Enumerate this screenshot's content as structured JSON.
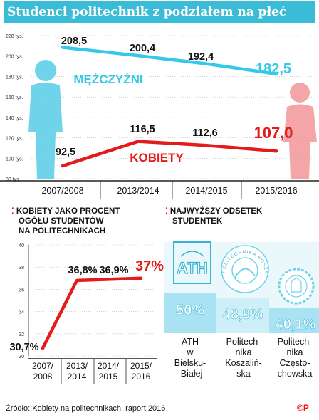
{
  "title": "Studenci politechnik z podziałem na płeć",
  "chart_data": [
    {
      "type": "line",
      "title": "Studenci politechnik z podziałem na płeć",
      "categories": [
        "2007/2008",
        "2013/2014",
        "2014/2015",
        "2015/2016"
      ],
      "ylim": [
        80,
        220
      ],
      "yticks": [
        "80 tys.",
        "100 tys.",
        "120 tys.",
        "140 tys.",
        "160 tys.",
        "180 tys.",
        "200 tys.",
        "220 tys."
      ],
      "series": [
        {
          "name": "MĘŻCZYŹNI",
          "values": [
            208.5,
            200.4,
            192.4,
            182.5
          ],
          "labels": [
            "208,5",
            "200,4",
            "192,4",
            "182,5"
          ],
          "color": "#36c8e8"
        },
        {
          "name": "KOBIETY",
          "values": [
            92.5,
            116.5,
            112.6,
            107.0
          ],
          "labels": [
            "92,5",
            "116,5",
            "112,6",
            "107,0"
          ],
          "color": "#e41b1b"
        }
      ]
    },
    {
      "type": "line",
      "title": "Kobiety jako procent ogółu studentów na politechnikach",
      "categories": [
        "2007/ 2008",
        "2013/ 2014",
        "2014/ 2015",
        "2015/ 2016"
      ],
      "ylim": [
        30,
        40
      ],
      "yticks": [
        "30",
        "32",
        "34",
        "36",
        "38",
        "40"
      ],
      "values": [
        30.7,
        36.8,
        36.9,
        37
      ],
      "labels": [
        "30,7%",
        "36,8%",
        "36,9%",
        "37%"
      ],
      "color": "#e41b1b"
    },
    {
      "type": "bar",
      "title": "Najwyższy odsetek studentek",
      "categories": [
        "ATH w Bielsku- -Białej",
        "Politech- nika Koszaliń- ska",
        "Politech- nika Często- chowska"
      ],
      "values": [
        50,
        48.9,
        40.1
      ],
      "labels": [
        "50%",
        "48,9%",
        "40,1%"
      ],
      "logos": [
        "ATH",
        "POLITECHNIKA KOSZALIŃSKA",
        "Politechnika Częstochowska emblem"
      ]
    }
  ],
  "headings": {
    "left": [
      "KOBIETY JAKO PROCENT",
      "OGÓŁU STUDENTÓW",
      "NA POLITECHNIKACH"
    ],
    "right": [
      "NAJWYŻSZY ODSETEK",
      "STUDENTEK"
    ]
  },
  "footer": {
    "source": "Źródło: Kobiety na politechnikach, raport 2016",
    "copyright": "©P"
  },
  "icons": [
    "male-figure-icon",
    "female-figure-icon",
    "ath-logo-icon",
    "koszalin-logo-icon",
    "czestochowa-logo-icon"
  ]
}
